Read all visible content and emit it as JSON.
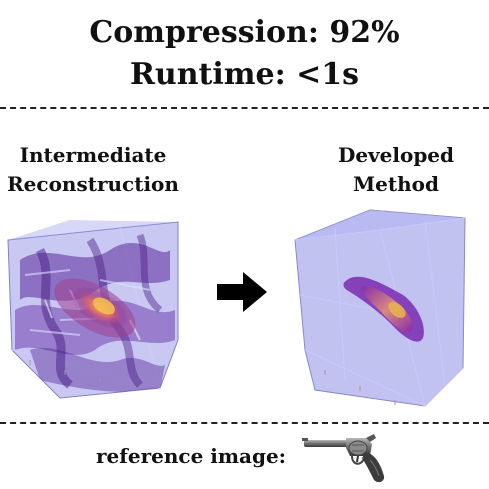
{
  "header": {
    "compression": "Compression: 92%",
    "runtime": "Runtime: <1s"
  },
  "panels": {
    "left": {
      "line1": "Intermediate",
      "line2": "Reconstruction"
    },
    "right": {
      "line1": "Developed",
      "line2": "Method"
    }
  },
  "footer": {
    "label": "reference image:"
  },
  "colors": {
    "cube_face": "#9a9ae8",
    "cube_edge": "#7070c0",
    "density_low": "#5b2a9a",
    "density_mid": "#c0508a",
    "density_high": "#f0a050",
    "arrow": "#000000"
  },
  "icons": {
    "arrow": "right-arrow-icon",
    "reference": "revolver-icon"
  }
}
